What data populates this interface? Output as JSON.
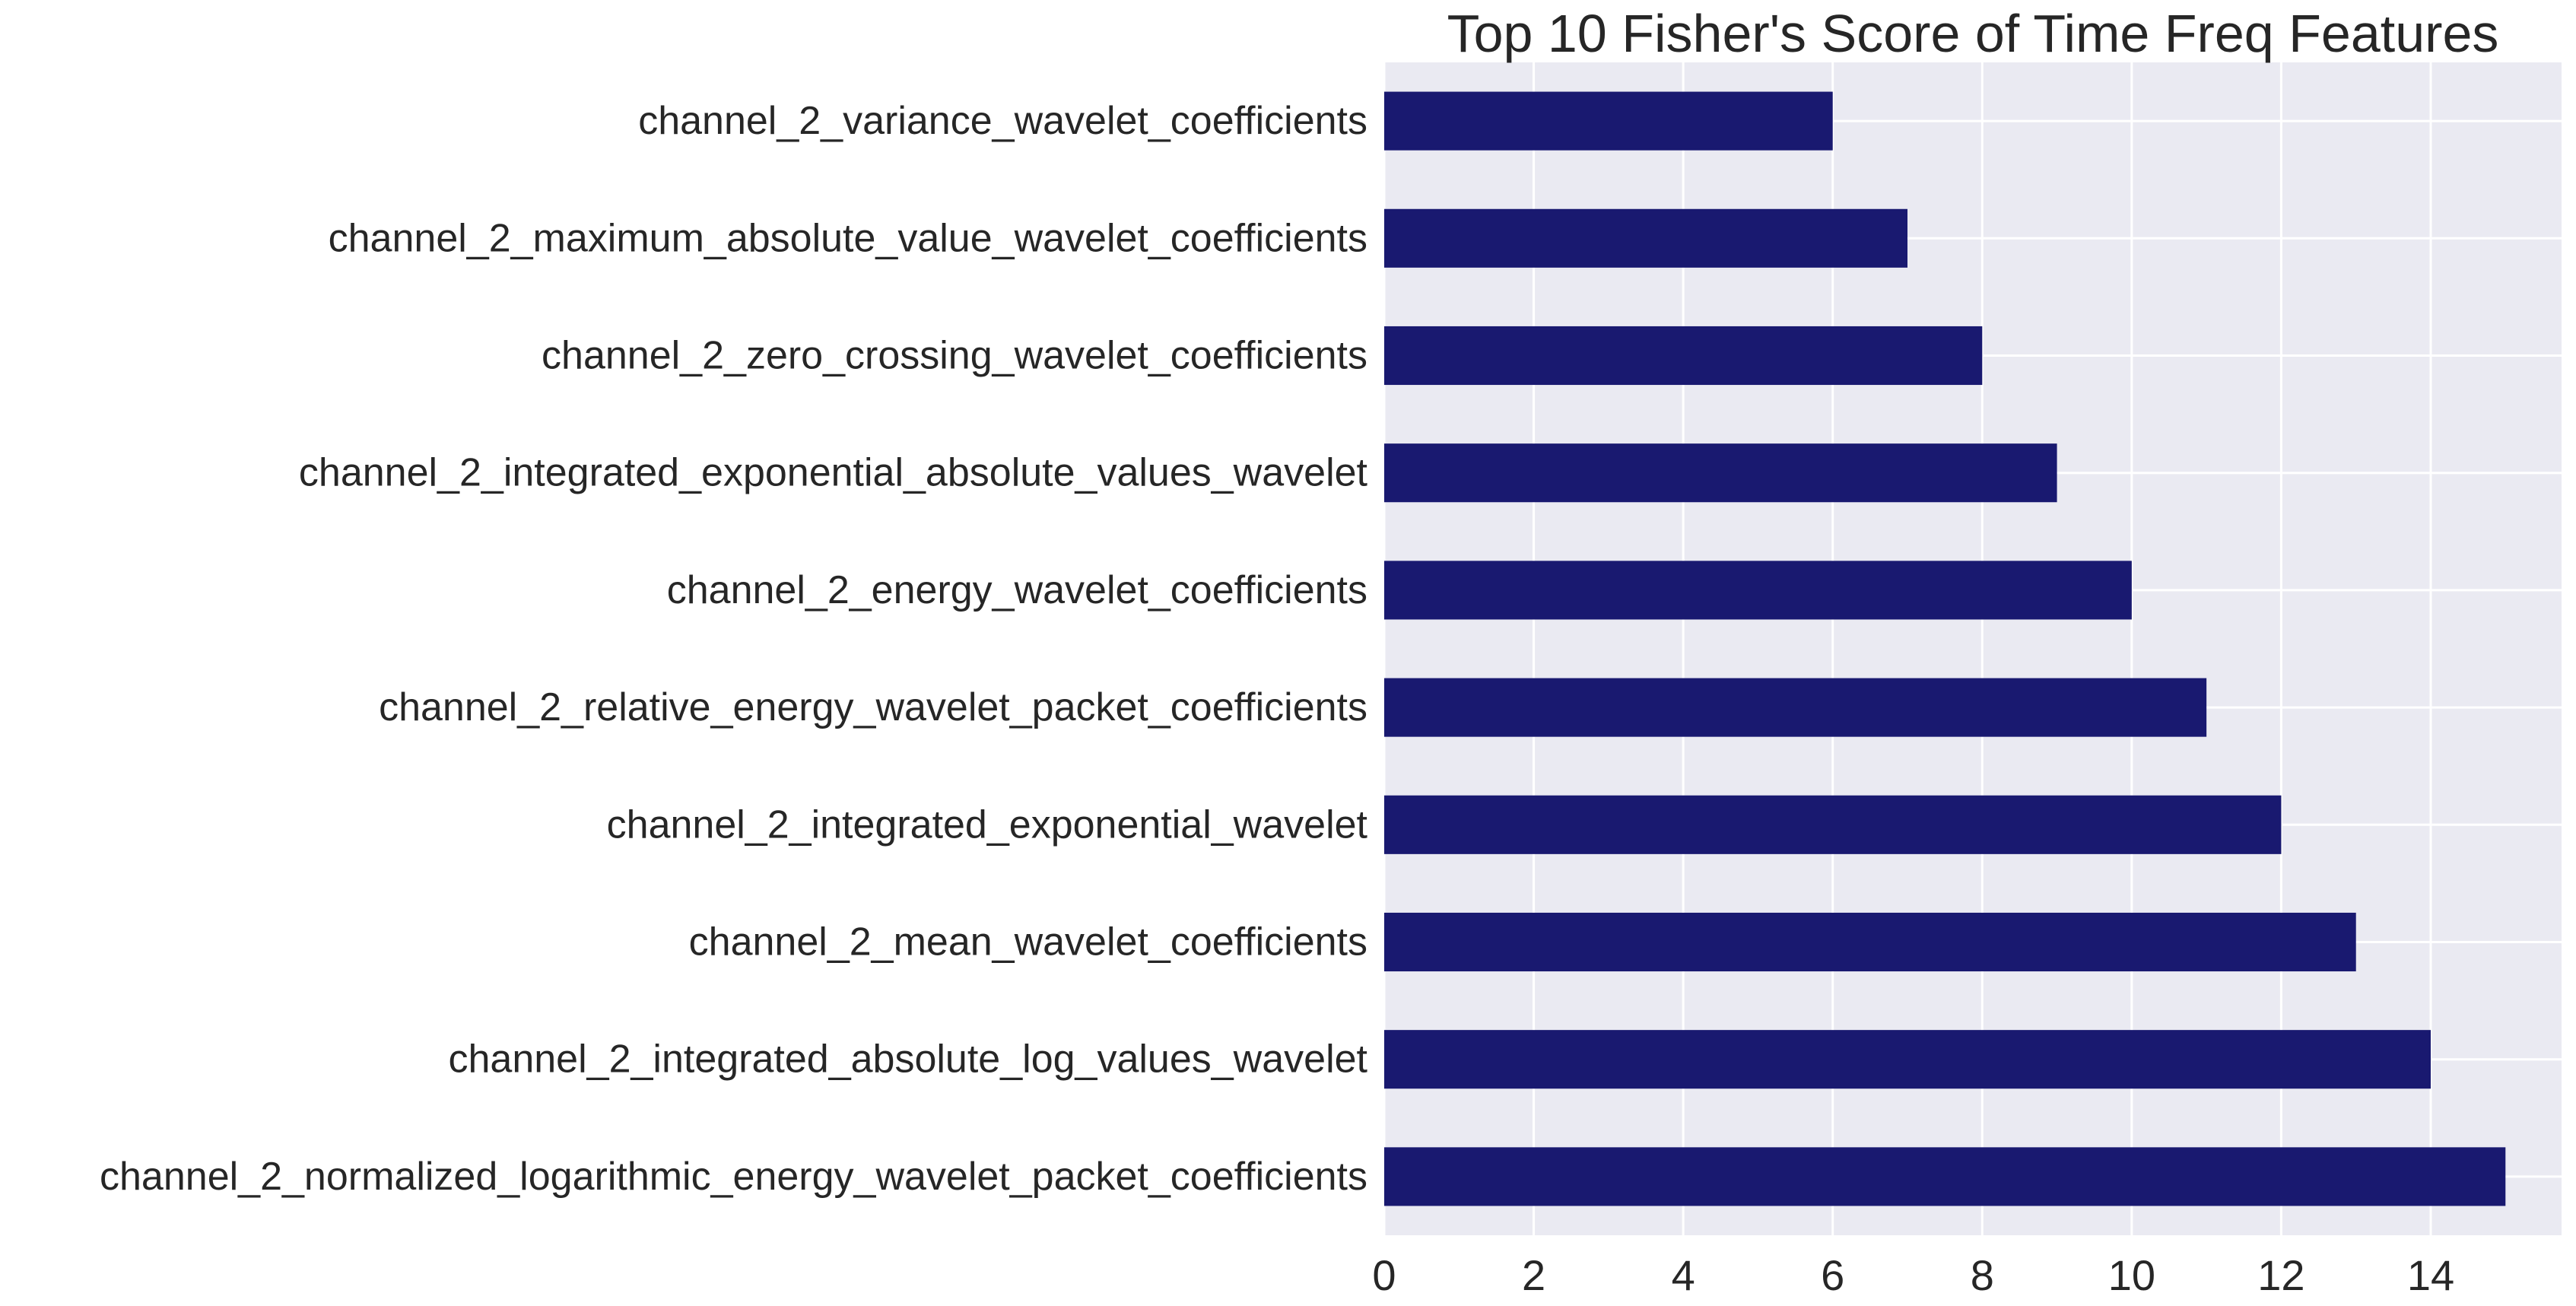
{
  "chart_data": {
    "type": "bar",
    "orientation": "horizontal",
    "title": "Top 10 Fisher's Score of Time Freq Features",
    "xlabel": "",
    "ylabel": "",
    "categories": [
      "channel_2_variance_wavelet_coefficients",
      "channel_2_maximum_absolute_value_wavelet_coefficients",
      "channel_2_zero_crossing_wavelet_coefficients",
      "channel_2_integrated_exponential_absolute_values_wavelet",
      "channel_2_energy_wavelet_coefficients",
      "channel_2_relative_energy_wavelet_packet_coefficients",
      "channel_2_integrated_exponential_wavelet",
      "channel_2_mean_wavelet_coefficients",
      "channel_2_integrated_absolute_log_values_wavelet",
      "channel_2_normalized_logarithmic_energy_wavelet_packet_coefficients"
    ],
    "values": [
      6,
      7,
      8,
      9,
      10,
      11,
      12,
      13,
      14,
      15
    ],
    "xlim": [
      0,
      15.75
    ],
    "xticks": [
      0,
      2,
      4,
      6,
      8,
      10,
      12,
      14
    ],
    "bar_color": "#191970",
    "background_color": "#EAEAF2",
    "grid": true,
    "legend": "none"
  }
}
